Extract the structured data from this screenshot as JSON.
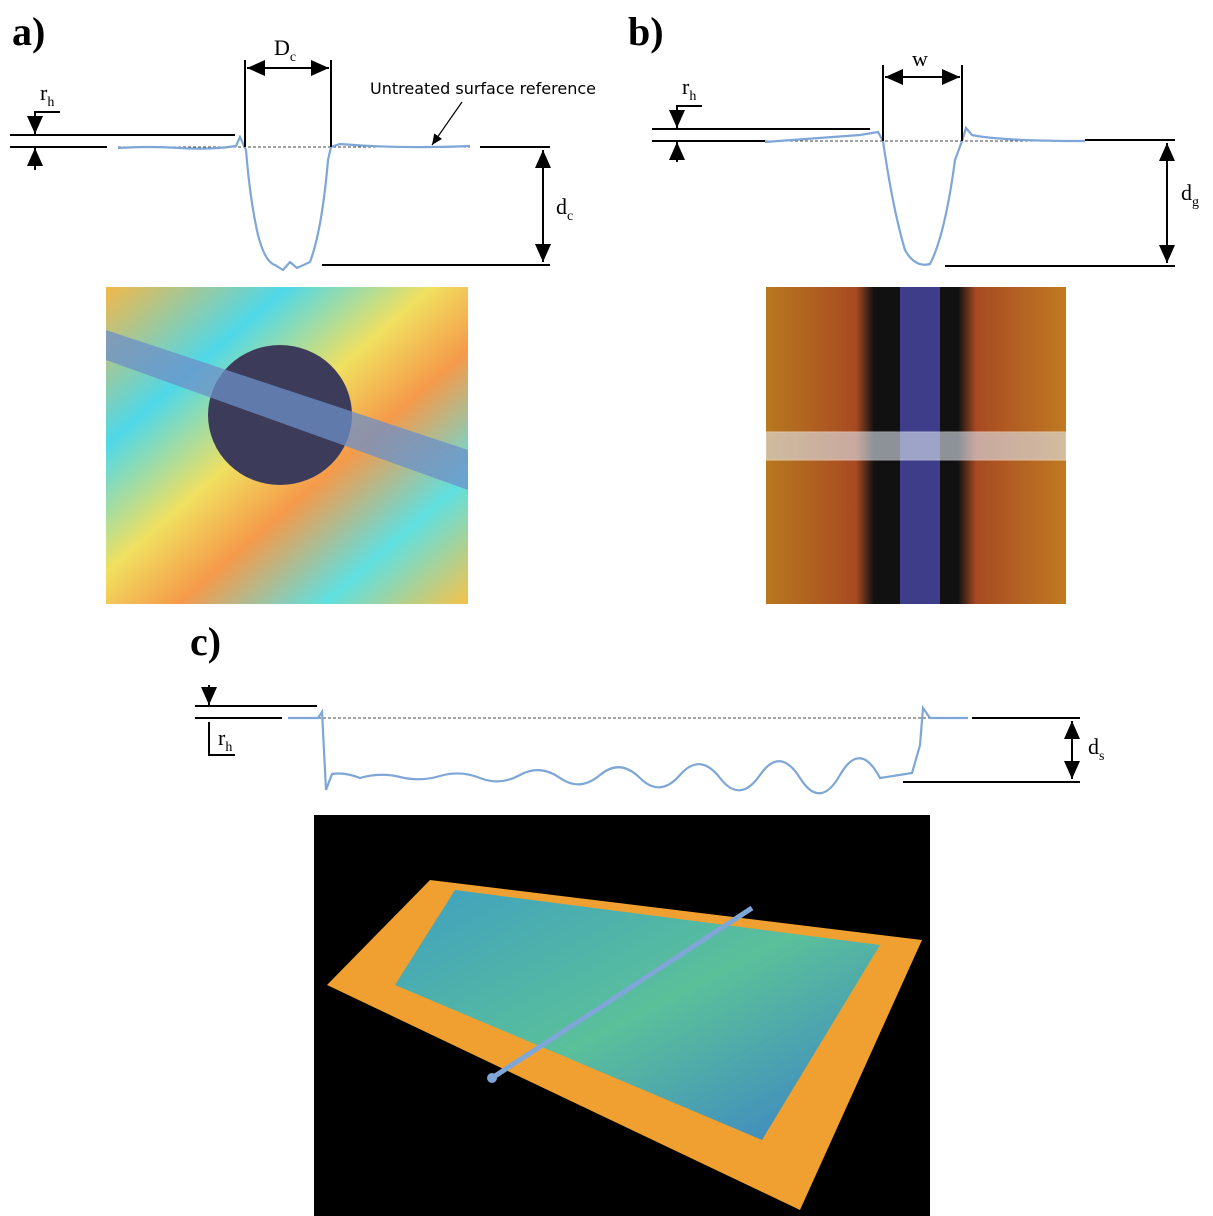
{
  "panels": [
    {
      "label": "a)",
      "dims": [
        {
          "main": "r",
          "sub": "h"
        },
        {
          "main": "D",
          "sub": "c"
        },
        {
          "main": "d",
          "sub": "c"
        }
      ],
      "note": "Untreated surface reference"
    },
    {
      "label": "b)",
      "dims": [
        {
          "main": "r",
          "sub": "h"
        },
        {
          "main": "w"
        },
        {
          "main": "d",
          "sub": "g"
        }
      ]
    },
    {
      "label": "c)",
      "dims": [
        {
          "main": "r",
          "sub": "h"
        },
        {
          "main": "d",
          "sub": "s"
        }
      ]
    }
  ]
}
